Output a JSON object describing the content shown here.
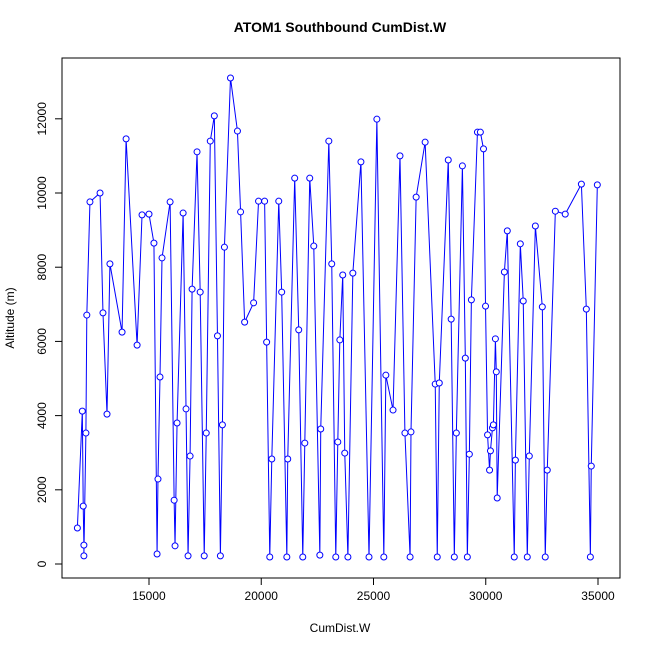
{
  "chart_data": {
    "type": "line",
    "title": "ATOM1 Southbound CumDist.W",
    "x_label": "CumDist.W",
    "y_label": "Altitude (m)",
    "color": "#0000ff",
    "markers": true,
    "x": [
      11810,
      12030,
      12070,
      12100,
      12100,
      12190,
      12230,
      12370,
      12820,
      12950,
      13130,
      13260,
      13800,
      13980,
      14470,
      14690,
      15000,
      15220,
      15360,
      15400,
      15490,
      15580,
      15940,
      16120,
      16160,
      16250,
      16520,
      16650,
      16740,
      16830,
      16920,
      17140,
      17280,
      17460,
      17550,
      17730,
      17910,
      18050,
      18180,
      18270,
      18360,
      18630,
      18940,
      19080,
      19260,
      19660,
      19880,
      20150,
      20240,
      20380,
      20470,
      20780,
      20910,
      21140,
      21180,
      21490,
      21670,
      21850,
      21940,
      22160,
      22340,
      22610,
      22650,
      23010,
      23140,
      23320,
      23410,
      23500,
      23630,
      23720,
      23860,
      24080,
      24440,
      24800,
      25150,
      25460,
      25550,
      25870,
      26180,
      26400,
      26630,
      26670,
      26900,
      27300,
      27750,
      27840,
      27930,
      28330,
      28460,
      28600,
      28690,
      28960,
      29090,
      29180,
      29270,
      29360,
      29630,
      29760,
      29900,
      29990,
      30080,
      30170,
      30210,
      30300,
      30340,
      30430,
      30470,
      30510,
      30830,
      30960,
      31270,
      31320,
      31540,
      31670,
      31850,
      31940,
      32210,
      32520,
      32650,
      32740,
      33100,
      33540,
      34260,
      34480,
      34660,
      34700,
      34970
    ],
    "values": [
      970,
      4120,
      1560,
      510,
      220,
      3530,
      6710,
      9760,
      10000,
      6770,
      4040,
      8090,
      6250,
      11460,
      5900,
      9410,
      9430,
      8650,
      270,
      2290,
      5040,
      8250,
      9760,
      1720,
      490,
      3800,
      9460,
      4180,
      220,
      2910,
      7410,
      11110,
      7330,
      220,
      3530,
      11400,
      12080,
      6150,
      220,
      3750,
      8540,
      13100,
      11670,
      9490,
      6520,
      7040,
      9780,
      9780,
      5980,
      190,
      2830,
      9780,
      7330,
      190,
      2830,
      10400,
      6310,
      190,
      3260,
      10400,
      8570,
      240,
      3640,
      11400,
      8090,
      190,
      3290,
      6040,
      7790,
      2990,
      190,
      7840,
      10840,
      190,
      11990,
      190,
      5090,
      4150,
      11000,
      3530,
      190,
      3560,
      9890,
      11370,
      4850,
      190,
      4880,
      10890,
      6600,
      190,
      3530,
      10730,
      5550,
      190,
      2960,
      7120,
      11640,
      11640,
      11190,
      6950,
      3480,
      2530,
      3050,
      3670,
      3750,
      6070,
      5180,
      1780,
      7870,
      8980,
      190,
      2800,
      8630,
      7090,
      190,
      2910,
      9110,
      6930,
      190,
      2530,
      9510,
      9430,
      10240,
      6870,
      190,
      2640,
      10220
    ],
    "xlim": [
      11125,
      35980
    ],
    "ylim": [
      -377,
      13639
    ],
    "xticks": [
      15000,
      20000,
      25000,
      30000,
      35000
    ],
    "yticks": [
      0,
      2000,
      4000,
      6000,
      8000,
      10000,
      12000
    ]
  }
}
